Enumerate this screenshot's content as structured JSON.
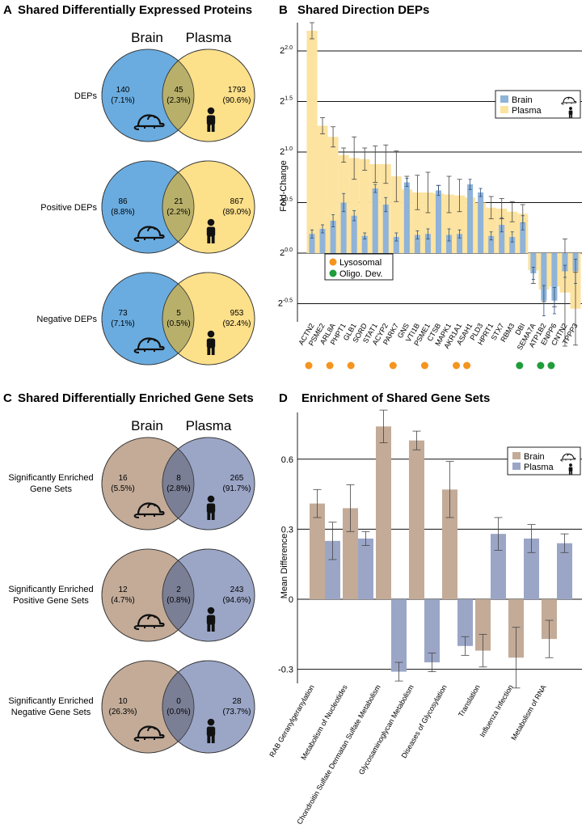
{
  "panels": {
    "A": {
      "letter": "A",
      "title": "Shared Differentially Expressed Proteins"
    },
    "B": {
      "letter": "B",
      "title": "Shared Direction DEPs"
    },
    "C": {
      "letter": "C",
      "title": "Shared Differentially Enriched Gene Sets"
    },
    "D": {
      "letter": "D",
      "title": "Enrichment of Shared Gene Sets"
    }
  },
  "venn_A": {
    "left_label": "Brain",
    "right_label": "Plasma",
    "left_color": "#6aace0",
    "right_color": "#fde08a",
    "overlap_color": "#b8b06a",
    "rows": [
      {
        "label": "DEPs",
        "left": "140",
        "left_pct": "(7.1%)",
        "mid": "45",
        "mid_pct": "(2.3%)",
        "right": "1793",
        "right_pct": "(90.6%)"
      },
      {
        "label": "Positive DEPs",
        "left": "86",
        "left_pct": "(8.8%)",
        "mid": "21",
        "mid_pct": "(2.2%)",
        "right": "867",
        "right_pct": "(89.0%)"
      },
      {
        "label": "Negative DEPs",
        "left": "73",
        "left_pct": "(7.1%)",
        "mid": "5",
        "mid_pct": "(0.5%)",
        "right": "953",
        "right_pct": "(92.4%)"
      }
    ]
  },
  "venn_C": {
    "left_label": "Brain",
    "right_label": "Plasma",
    "left_color": "#c3ab98",
    "right_color": "#9ba6c7",
    "overlap_color": "#7b7f95",
    "rows": [
      {
        "label1": "Significantly Enriched",
        "label2": "Gene Sets",
        "left": "16",
        "left_pct": "(5.5%)",
        "mid": "8",
        "mid_pct": "(2.8%)",
        "right": "265",
        "right_pct": "(91.7%)"
      },
      {
        "label1": "Significantly Enriched",
        "label2": "Positive Gene Sets",
        "left": "12",
        "left_pct": "(4.7%)",
        "mid": "2",
        "mid_pct": "(0.8%)",
        "right": "243",
        "right_pct": "(94.6%)"
      },
      {
        "label1": "Significantly Enriched",
        "label2": "Negative Gene Sets",
        "left": "10",
        "left_pct": "(26.3%)",
        "mid": "0",
        "mid_pct": "(0.0%)",
        "right": "28",
        "right_pct": "(73.7%)"
      }
    ]
  },
  "chart_data": [
    {
      "type": "bar",
      "title": "Shared Direction DEPs",
      "ylabel": "Fold-Change",
      "y_scale": "log2",
      "ylim": [
        -0.68,
        2.28
      ],
      "yticks": [
        -0.5,
        0.0,
        0.5,
        1.0,
        1.5,
        2.0
      ],
      "ytick_base": "2",
      "ytick_labels": [
        "-0.5",
        "0.0",
        "0.5",
        "1.0",
        "1.5",
        "2.0"
      ],
      "grid": true,
      "legend_position": "top-right",
      "categories": [
        "ACTN2",
        "PSME2",
        "ARL8A",
        "PHPT1",
        "GLB1",
        "SORD",
        "STAT1",
        "ACYP2",
        "PARK7",
        "GNS",
        "VTI1B",
        "PSME1",
        "CTSB",
        "MAPK1",
        "AKR1A1",
        "ASAH1",
        "PLD3",
        "HPRT1",
        "STX7",
        "RBM3",
        "DBI",
        "SEMA7A",
        "ATP1B2",
        "ENPP6",
        "CNTN2",
        "TPPP3"
      ],
      "series": [
        {
          "name": "Brain",
          "color": "#8fb3d9",
          "values": [
            0.19,
            0.24,
            0.32,
            0.5,
            0.37,
            0.17,
            0.64,
            0.48,
            0.16,
            0.7,
            0.18,
            0.19,
            0.62,
            0.18,
            0.19,
            0.68,
            0.6,
            0.17,
            0.28,
            0.16,
            0.3,
            -0.2,
            -0.47,
            -0.47,
            -0.18,
            -0.18
          ],
          "errors": [
            0.04,
            0.04,
            0.06,
            0.09,
            0.05,
            0.03,
            0.04,
            0.07,
            0.04,
            0.04,
            0.04,
            0.05,
            0.05,
            0.06,
            0.04,
            0.05,
            0.04,
            0.04,
            0.07,
            0.05,
            0.07,
            0.06,
            0.15,
            0.13,
            0.06,
            0.12
          ]
        },
        {
          "name": "Plasma",
          "color": "#fde3a0",
          "values": [
            2.2,
            1.26,
            1.15,
            0.97,
            0.94,
            0.93,
            0.88,
            0.88,
            0.76,
            0.63,
            0.6,
            0.6,
            0.59,
            0.58,
            0.57,
            0.55,
            0.5,
            0.45,
            0.44,
            0.41,
            0.39,
            -0.17,
            -0.36,
            -0.33,
            -0.39,
            -0.55
          ],
          "errors": [
            0.08,
            0.08,
            0.1,
            0.07,
            0.21,
            0.11,
            0.18,
            0.19,
            0.25,
            0.13,
            0.17,
            0.2,
            0.08,
            0.18,
            0.16,
            0.07,
            0.09,
            0.11,
            0.1,
            0.1,
            0.09,
            0.13,
            0.12,
            0.2,
            0.53,
            0.36
          ]
        }
      ],
      "annotations": {
        "Lysosomal": {
          "color": "#f5941f",
          "categories": [
            "ACTN2",
            "ARL8A",
            "GLB1",
            "PARK7",
            "PSME1",
            "AKR1A1",
            "ASAH1"
          ]
        },
        "Oligo. Dev.": {
          "color": "#1f9d3a",
          "categories": [
            "DBI",
            "ATP1B2",
            "ENPP6"
          ]
        }
      }
    },
    {
      "type": "bar",
      "title": "Enrichment of Shared Gene Sets",
      "ylabel": "Mean Difference",
      "ylim": [
        -0.36,
        0.8
      ],
      "yticks": [
        -0.3,
        0,
        0.3,
        0.6
      ],
      "ytick_labels": [
        "-0.3",
        "0",
        "0.3",
        "0.6"
      ],
      "grid": true,
      "legend_position": "top-right",
      "categories": [
        "RAB Geranylgeranylation",
        "Metabolism of Nucleotides",
        "Chondroitin Sulfate Dermatan Sulfate Metabolism",
        "Glycosaminoglycan Metabolism",
        "Diseases of Glycosylation",
        "Translation",
        "Influenza Infection",
        "Metabolism of RNA"
      ],
      "series": [
        {
          "name": "Brain",
          "color": "#c3ab98",
          "values": [
            0.41,
            0.39,
            0.74,
            0.68,
            0.47,
            -0.22,
            -0.25,
            -0.17
          ],
          "errors": [
            0.06,
            0.1,
            0.07,
            0.04,
            0.12,
            0.07,
            0.13,
            0.08
          ]
        },
        {
          "name": "Plasma",
          "color": "#9ba6c7",
          "values": [
            0.25,
            0.26,
            -0.31,
            -0.27,
            -0.2,
            0.28,
            0.26,
            0.24
          ],
          "errors": [
            0.08,
            0.03,
            0.04,
            0.04,
            0.04,
            0.07,
            0.06,
            0.04
          ]
        }
      ]
    }
  ]
}
